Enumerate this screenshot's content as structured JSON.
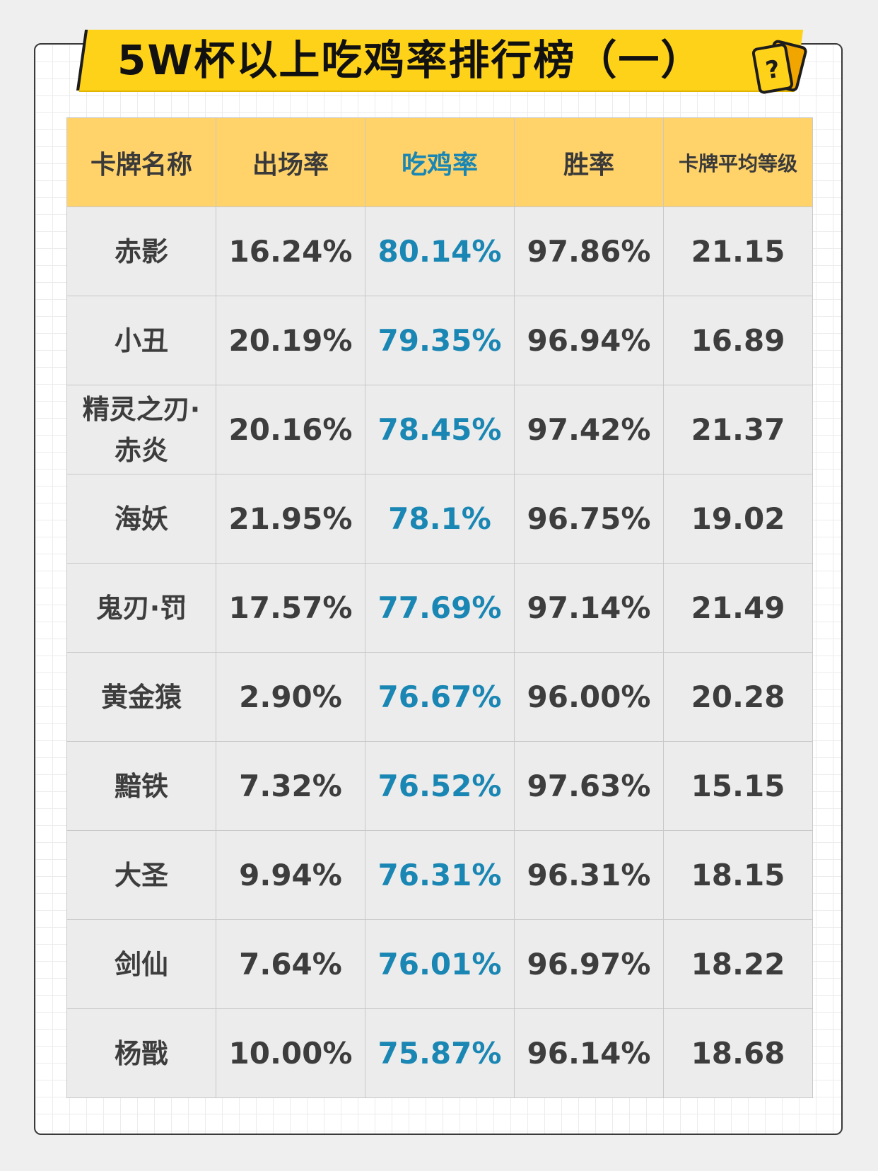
{
  "title": "5W杯以上吃鸡率排行榜（一）",
  "columns": [
    "卡牌名称",
    "出场率",
    "吃鸡率",
    "胜率",
    "卡牌平均等级"
  ],
  "rows": [
    {
      "name": "赤影",
      "appearance": "16.24%",
      "chicken": "80.14%",
      "win": "97.86%",
      "level": "21.15"
    },
    {
      "name": "小丑",
      "appearance": "20.19%",
      "chicken": "79.35%",
      "win": "96.94%",
      "level": "16.89"
    },
    {
      "name": "精灵之刃·赤炎",
      "appearance": "20.16%",
      "chicken": "78.45%",
      "win": "97.42%",
      "level": "21.37"
    },
    {
      "name": "海妖",
      "appearance": "21.95%",
      "chicken": "78.1%",
      "win": "96.75%",
      "level": "19.02"
    },
    {
      "name": "鬼刃·罚",
      "appearance": "17.57%",
      "chicken": "77.69%",
      "win": "97.14%",
      "level": "21.49"
    },
    {
      "name": "黄金猿",
      "appearance": "2.90%",
      "chicken": "76.67%",
      "win": "96.00%",
      "level": "20.28"
    },
    {
      "name": "黯铁",
      "appearance": "7.32%",
      "chicken": "76.52%",
      "win": "97.63%",
      "level": "15.15"
    },
    {
      "name": "大圣",
      "appearance": "9.94%",
      "chicken": "76.31%",
      "win": "96.31%",
      "level": "18.15"
    },
    {
      "name": "剑仙",
      "appearance": "7.64%",
      "chicken": "76.01%",
      "win": "96.97%",
      "level": "18.22"
    },
    {
      "name": "杨戬",
      "appearance": "10.00%",
      "chicken": "75.87%",
      "win": "96.14%",
      "level": "18.68"
    }
  ],
  "colors": {
    "banner": "#ffd21a",
    "header_bg": "#ffd36a",
    "cell_bg": "#ececec",
    "highlight_text": "#1a86b3"
  },
  "icons": {
    "deco": "question-card-icon"
  }
}
